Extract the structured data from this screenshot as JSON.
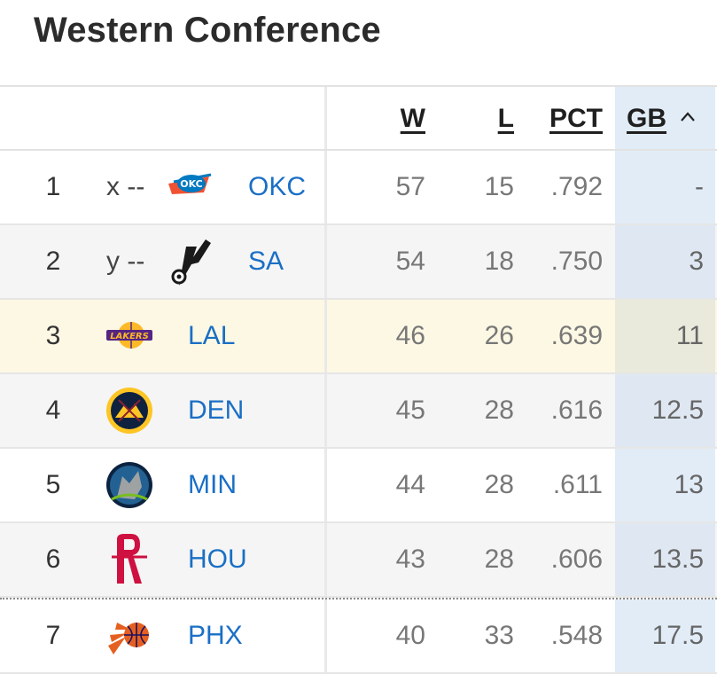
{
  "title": "Western Conference",
  "columns": {
    "w": "W",
    "l": "L",
    "pct": "PCT",
    "gb": "GB"
  },
  "rows": [
    {
      "rank": "1",
      "clinch": "x --",
      "abbr": "OKC",
      "w": "57",
      "l": "15",
      "pct": ".792",
      "gb": "-",
      "logo": "okc-logo-icon"
    },
    {
      "rank": "2",
      "clinch": "y --",
      "abbr": "SA",
      "w": "54",
      "l": "18",
      "pct": ".750",
      "gb": "3",
      "logo": "spurs-logo-icon"
    },
    {
      "rank": "3",
      "clinch": "",
      "abbr": "LAL",
      "w": "46",
      "l": "26",
      "pct": ".639",
      "gb": "11",
      "logo": "lakers-logo-icon"
    },
    {
      "rank": "4",
      "clinch": "",
      "abbr": "DEN",
      "w": "45",
      "l": "28",
      "pct": ".616",
      "gb": "12.5",
      "logo": "nuggets-logo-icon"
    },
    {
      "rank": "5",
      "clinch": "",
      "abbr": "MIN",
      "w": "44",
      "l": "28",
      "pct": ".611",
      "gb": "13",
      "logo": "timberwolves-logo-icon"
    },
    {
      "rank": "6",
      "clinch": "",
      "abbr": "HOU",
      "w": "43",
      "l": "28",
      "pct": ".606",
      "gb": "13.5",
      "logo": "rockets-logo-icon"
    },
    {
      "rank": "7",
      "clinch": "",
      "abbr": "PHX",
      "w": "40",
      "l": "33",
      "pct": ".548",
      "gb": "17.5",
      "logo": "suns-logo-icon"
    }
  ],
  "colors": {
    "link": "#1a6fc5",
    "gb_column": "#e1ecf7",
    "highlight_row": "#fdf8e4"
  },
  "sort": {
    "column": "GB",
    "direction": "ascending",
    "icon": "chevron-up-icon"
  }
}
